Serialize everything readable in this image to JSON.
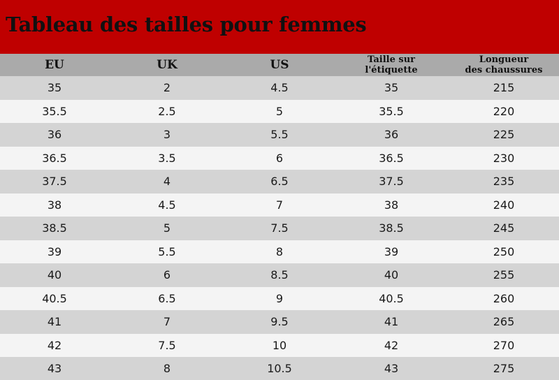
{
  "title": "Tableau des tailles pour femmes",
  "colors": {
    "title_bar": "#bf0000",
    "header_row": "#aaaaaa",
    "row_shade": "#d4d4d4",
    "row_light": "#f4f4f4"
  },
  "columns": [
    {
      "lines": [
        "EU"
      ]
    },
    {
      "lines": [
        "UK"
      ]
    },
    {
      "lines": [
        "US"
      ]
    },
    {
      "lines": [
        "Taille sur",
        "l'étiquette"
      ]
    },
    {
      "lines": [
        "Longueur",
        "des chaussures"
      ]
    }
  ],
  "rows": [
    [
      "35",
      "2",
      "4.5",
      "35",
      "215"
    ],
    [
      "35.5",
      "2.5",
      "5",
      "35.5",
      "220"
    ],
    [
      "36",
      "3",
      "5.5",
      "36",
      "225"
    ],
    [
      "36.5",
      "3.5",
      "6",
      "36.5",
      "230"
    ],
    [
      "37.5",
      "4",
      "6.5",
      "37.5",
      "235"
    ],
    [
      "38",
      "4.5",
      "7",
      "38",
      "240"
    ],
    [
      "38.5",
      "5",
      "7.5",
      "38.5",
      "245"
    ],
    [
      "39",
      "5.5",
      "8",
      "39",
      "250"
    ],
    [
      "40",
      "6",
      "8.5",
      "40",
      "255"
    ],
    [
      "40.5",
      "6.5",
      "9",
      "40.5",
      "260"
    ],
    [
      "41",
      "7",
      "9.5",
      "41",
      "265"
    ],
    [
      "42",
      "7.5",
      "10",
      "42",
      "270"
    ],
    [
      "43",
      "8",
      "10.5",
      "43",
      "275"
    ]
  ]
}
